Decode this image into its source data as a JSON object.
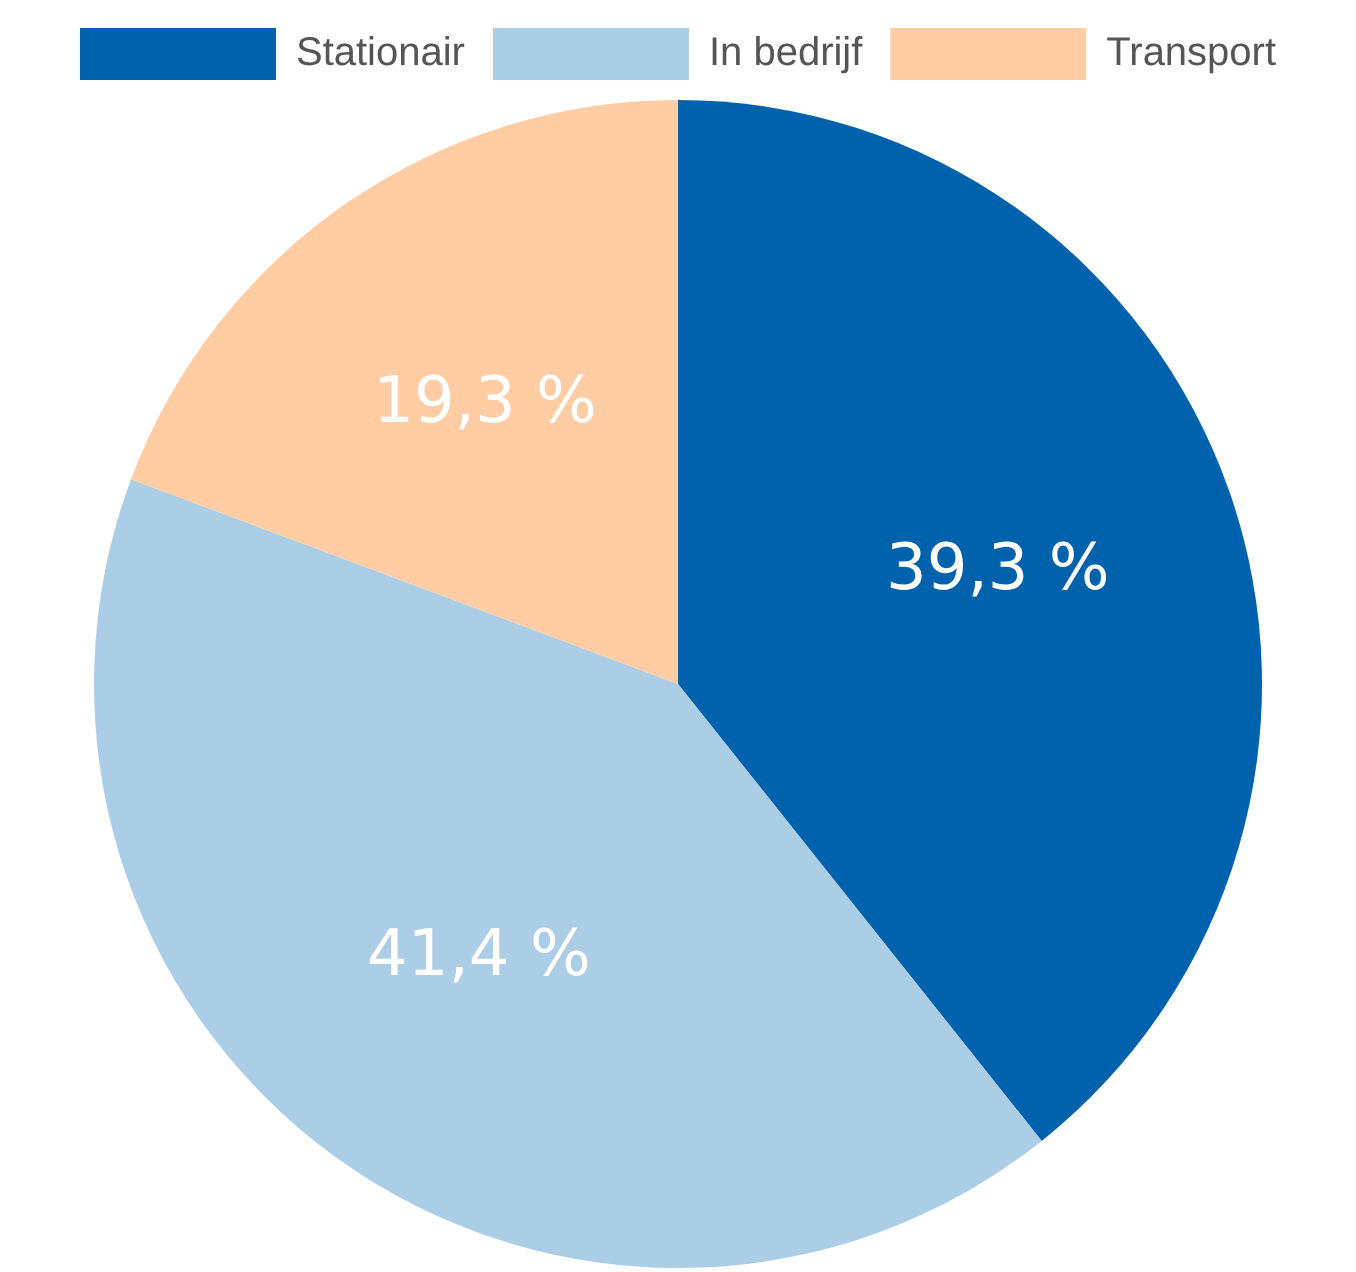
{
  "chart_data": {
    "type": "pie",
    "categories": [
      "Stationair",
      "In bedrijf",
      "Transport"
    ],
    "values": [
      39.3,
      41.4,
      19.3
    ],
    "colors": [
      "#0062ac",
      "#abcde6",
      "#ffcca3"
    ],
    "value_labels": [
      "39,3 %",
      "41,4 %",
      "19,3 %"
    ],
    "legend": "top"
  }
}
